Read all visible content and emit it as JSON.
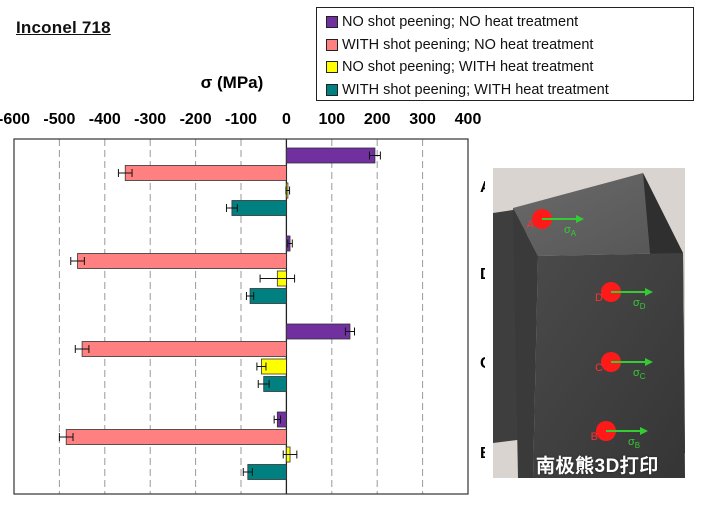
{
  "title": "Inconel 718",
  "watermark": "南极熊3D打印",
  "chart_data": {
    "type": "bar",
    "orientation": "horizontal",
    "xlabel": "σ (MPa)",
    "xlim": [
      -600,
      400
    ],
    "xticks": [
      -600,
      -500,
      -400,
      -300,
      -200,
      -100,
      0,
      100,
      200,
      300,
      400
    ],
    "grid": "vertical dashed",
    "legend_position": "top-right",
    "categories": [
      "A",
      "D",
      "C",
      "B"
    ],
    "series": [
      {
        "name": "NO shot peening; NO heat treatment",
        "color": "#7030a0",
        "values": [
          195,
          8,
          140,
          -20
        ],
        "errors": [
          12,
          5,
          10,
          7
        ]
      },
      {
        "name": "WITH shot peening; NO heat treatment",
        "color": "#ff8080",
        "values": [
          -355,
          -460,
          -450,
          -485
        ],
        "errors": [
          15,
          15,
          15,
          15
        ]
      },
      {
        "name": "NO shot peening; WITH heat treatment",
        "color": "#ffff00",
        "values": [
          3,
          -20,
          -55,
          8
        ],
        "errors": [
          4,
          38,
          10,
          15
        ]
      },
      {
        "name": "WITH shot peening; WITH heat treatment",
        "color": "#008080",
        "values": [
          -120,
          -80,
          -50,
          -85
        ],
        "errors": [
          12,
          8,
          12,
          10
        ]
      }
    ]
  },
  "photo": {
    "points": [
      {
        "label": "A",
        "sigma": "σ",
        "sub": "A"
      },
      {
        "label": "D",
        "sigma": "σ",
        "sub": "D"
      },
      {
        "label": "C",
        "sigma": "σ",
        "sub": "C"
      },
      {
        "label": "B",
        "sigma": "σ",
        "sub": "B"
      }
    ]
  }
}
